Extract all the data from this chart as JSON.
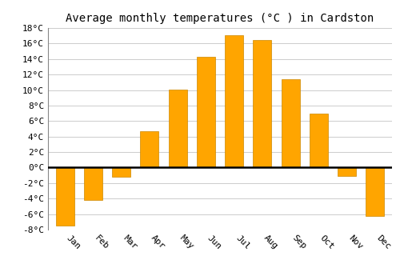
{
  "title": "Average monthly temperatures (°C ) in Cardston",
  "months": [
    "Jan",
    "Feb",
    "Mar",
    "Apr",
    "May",
    "Jun",
    "Jul",
    "Aug",
    "Sep",
    "Oct",
    "Nov",
    "Dec"
  ],
  "temperatures": [
    -7.5,
    -4.2,
    -1.2,
    4.7,
    10.1,
    14.3,
    17.1,
    16.5,
    11.4,
    7.0,
    -1.1,
    -6.2
  ],
  "bar_color": "#FFA500",
  "bar_edge_color": "#CC8800",
  "ylim": [
    -8,
    18
  ],
  "yticks": [
    -8,
    -6,
    -4,
    -2,
    0,
    2,
    4,
    6,
    8,
    10,
    12,
    14,
    16,
    18
  ],
  "ytick_labels": [
    "-8°C",
    "-6°C",
    "-4°C",
    "-2°C",
    "0°C",
    "2°C",
    "4°C",
    "6°C",
    "8°C",
    "10°C",
    "12°C",
    "14°C",
    "16°C",
    "18°C"
  ],
  "background_color": "#ffffff",
  "grid_color": "#cccccc",
  "title_fontsize": 10,
  "tick_fontsize": 8,
  "font_family": "monospace",
  "bar_width": 0.65,
  "xlabel_rotation": -45,
  "xlabel_ha": "left"
}
